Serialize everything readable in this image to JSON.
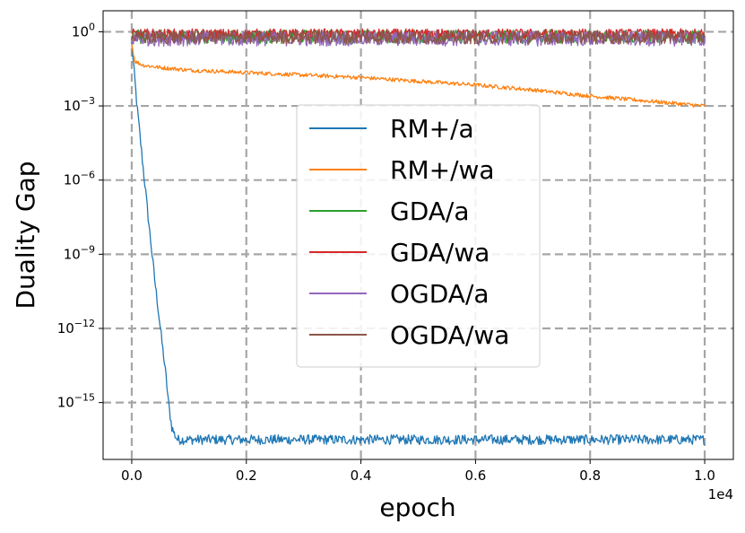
{
  "chart_data": {
    "type": "line",
    "title": "",
    "xlabel": "epoch",
    "ylabel": "Duality Gap",
    "x_offset_label": "1e4",
    "xlim": [
      -0.05,
      1.05
    ],
    "ylim_log10": [
      -17.3,
      0.85
    ],
    "y_scale": "log",
    "grid": true,
    "legend_position": "center",
    "x_ticks": [
      {
        "value": 0.0,
        "label": "0.0"
      },
      {
        "value": 0.2,
        "label": "0.2"
      },
      {
        "value": 0.4,
        "label": "0.4"
      },
      {
        "value": 0.6,
        "label": "0.6"
      },
      {
        "value": 0.8,
        "label": "0.8"
      },
      {
        "value": 1.0,
        "label": "1.0"
      }
    ],
    "y_ticks": [
      {
        "exp": 0,
        "base": "10",
        "sup": "0"
      },
      {
        "exp": -3,
        "base": "10",
        "sup": "−3"
      },
      {
        "exp": -6,
        "base": "10",
        "sup": "−6"
      },
      {
        "exp": -9,
        "base": "10",
        "sup": "−9"
      },
      {
        "exp": -12,
        "base": "10",
        "sup": "−12"
      },
      {
        "exp": -15,
        "base": "10",
        "sup": "−15"
      }
    ],
    "series": [
      {
        "name": "RM+/a",
        "color": "#1f77b4",
        "x": [
          0.0,
          0.01,
          0.02,
          0.03,
          0.04,
          0.05,
          0.06,
          0.065,
          0.07,
          0.075,
          0.08,
          0.1,
          0.2,
          0.4,
          0.6,
          0.8,
          1.0
        ],
        "log10_y": [
          -0.5,
          -3.2,
          -5.5,
          -7.8,
          -10.0,
          -12.0,
          -14.0,
          -15.2,
          -16.0,
          -16.3,
          -16.5,
          -16.5,
          -16.5,
          -16.5,
          -16.5,
          -16.5,
          -16.5
        ],
        "noise": 0.2
      },
      {
        "name": "RM+/wa",
        "color": "#ff7f0e",
        "x": [
          0.0,
          0.003,
          0.006,
          0.01,
          0.02,
          0.05,
          0.1,
          0.2,
          0.3,
          0.4,
          0.5,
          0.6,
          0.7,
          0.8,
          0.9,
          1.0
        ],
        "log10_y": [
          -0.5,
          -0.9,
          -1.2,
          -1.25,
          -1.35,
          -1.45,
          -1.55,
          -1.65,
          -1.75,
          -1.85,
          -2.0,
          -2.15,
          -2.35,
          -2.6,
          -2.8,
          -3.0
        ],
        "noise": 0.08
      },
      {
        "name": "GDA/a",
        "color": "#2ca02c",
        "x": [
          0.0,
          1.0
        ],
        "log10_y": [
          -0.2,
          -0.2
        ],
        "noise": 0.28
      },
      {
        "name": "GDA/wa",
        "color": "#d62728",
        "x": [
          0.0,
          1.0
        ],
        "log10_y": [
          -0.1,
          -0.1
        ],
        "noise": 0.22
      },
      {
        "name": "OGDA/a",
        "color": "#9467bd",
        "x": [
          0.0,
          1.0
        ],
        "log10_y": [
          -0.28,
          -0.28
        ],
        "noise": 0.3
      },
      {
        "name": "OGDA/wa",
        "color": "#8c564b",
        "x": [
          0.0,
          1.0
        ],
        "log10_y": [
          -0.22,
          -0.22
        ],
        "noise": 0.28
      }
    ]
  }
}
